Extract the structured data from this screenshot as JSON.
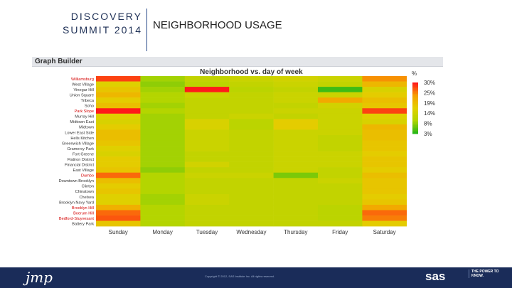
{
  "header": {
    "brand_line1": "DISCOVERY",
    "brand_line2": "SUMMIT 2014",
    "title": "NEIGHBORHOOD USAGE"
  },
  "window": {
    "title": "Graph Builder"
  },
  "chart_data": {
    "type": "heatmap",
    "title": "Neighborhood vs. day of week",
    "xlabel": "",
    "ylabel": "",
    "x_categories": [
      "Sunday",
      "Monday",
      "Tuesday",
      "Wednesday",
      "Thursday",
      "Friday",
      "Saturday"
    ],
    "y_categories": [
      "Williamsburg",
      "West Village",
      "Vinegar Hill",
      "Union Square",
      "Tribeca",
      "Soho",
      "Park Slope",
      "Murray Hill",
      "Midtown East",
      "Midtown",
      "Lower East Side",
      "Hells Kitchen",
      "Greenwich Village",
      "Gramercy Park",
      "Fort Greene",
      "Flatiron District",
      "Financial District",
      "East Village",
      "Dumbo",
      "Downtown Brooklyn",
      "Clinton",
      "Chinatown",
      "Chelsea",
      "Brooklyn Navy Yard",
      "Brooklyn Hill",
      "Boerum Hill",
      "Bedford-Stuyvesant",
      "Battery Park"
    ],
    "values": [
      [
        28,
        9,
        12,
        13,
        14,
        13,
        24
      ],
      [
        16,
        8,
        11,
        12,
        13,
        12,
        20
      ],
      [
        18,
        9,
        30,
        11,
        12,
        4,
        15
      ],
      [
        20,
        10,
        13,
        12,
        13,
        13,
        17
      ],
      [
        17,
        10,
        12,
        12,
        13,
        22,
        19
      ],
      [
        19,
        9,
        12,
        12,
        12,
        14,
        18
      ],
      [
        30,
        10,
        12,
        12,
        13,
        13,
        28
      ],
      [
        16,
        9,
        12,
        13,
        12,
        13,
        16
      ],
      [
        15,
        9,
        15,
        11,
        17,
        13,
        15
      ],
      [
        17,
        9,
        15,
        11,
        17,
        13,
        20
      ],
      [
        19,
        9,
        13,
        12,
        13,
        13,
        19
      ],
      [
        19,
        9,
        13,
        12,
        13,
        12,
        19
      ],
      [
        18,
        9,
        13,
        12,
        13,
        12,
        18
      ],
      [
        16,
        9,
        13,
        12,
        13,
        12,
        18
      ],
      [
        15,
        9,
        12,
        12,
        13,
        13,
        17
      ],
      [
        17,
        9,
        12,
        12,
        13,
        13,
        18
      ],
      [
        17,
        9,
        14,
        12,
        13,
        13,
        18
      ],
      [
        18,
        8,
        12,
        12,
        13,
        12,
        17
      ],
      [
        26,
        10,
        13,
        13,
        7,
        12,
        19
      ],
      [
        19,
        10,
        12,
        12,
        12,
        13,
        18
      ],
      [
        17,
        10,
        12,
        12,
        12,
        12,
        18
      ],
      [
        18,
        10,
        12,
        12,
        12,
        12,
        18
      ],
      [
        16,
        9,
        13,
        12,
        12,
        12,
        17
      ],
      [
        16,
        9,
        13,
        12,
        12,
        12,
        18
      ],
      [
        21,
        10,
        12,
        12,
        12,
        11,
        22
      ],
      [
        26,
        10,
        12,
        12,
        12,
        11,
        26
      ],
      [
        27,
        10,
        12,
        12,
        12,
        11,
        25
      ],
      [
        18,
        10,
        12,
        12,
        12,
        12,
        17
      ]
    ],
    "legend": {
      "title": "%",
      "labels": [
        "30%",
        "25%",
        "19%",
        "14%",
        "8%",
        "3%"
      ],
      "range": [
        3,
        30
      ],
      "colors": [
        "#ff1a1a",
        "#f6a000",
        "#e3d000",
        "#b2d500",
        "#2ab817"
      ],
      "placement": "right"
    }
  },
  "footer": {
    "jmp_logo": "jmp",
    "copyright": "Copyright © 2012, SAS Institute Inc. All rights reserved.",
    "sas_logo": "sas",
    "sas_tagline": "THE POWER TO KNOW."
  }
}
